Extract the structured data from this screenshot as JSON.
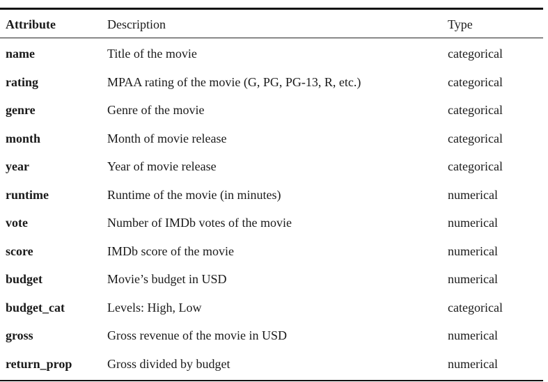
{
  "table": {
    "headers": {
      "attribute": "Attribute",
      "description": "Description",
      "type": "Type"
    },
    "rows": [
      {
        "attribute": "name",
        "description": "Title of the movie",
        "type": "categorical"
      },
      {
        "attribute": "rating",
        "description": "MPAA rating of the movie (G, PG, PG-13, R, etc.)",
        "type": "categorical"
      },
      {
        "attribute": "genre",
        "description": "Genre of the movie",
        "type": "categorical"
      },
      {
        "attribute": "month",
        "description": "Month of movie release",
        "type": "categorical"
      },
      {
        "attribute": "year",
        "description": "Year of movie release",
        "type": "categorical"
      },
      {
        "attribute": "runtime",
        "description": "Runtime of the movie (in minutes)",
        "type": "numerical"
      },
      {
        "attribute": "vote",
        "description": "Number of IMDb votes of the movie",
        "type": "numerical"
      },
      {
        "attribute": "score",
        "description": "IMDb score of the movie",
        "type": "numerical"
      },
      {
        "attribute": "budget",
        "description": "Movie’s budget in USD",
        "type": "numerical"
      },
      {
        "attribute": "budget_cat",
        "description": "Levels: High, Low",
        "type": "categorical"
      },
      {
        "attribute": "gross",
        "description": "Gross revenue of the movie in USD",
        "type": "numerical"
      },
      {
        "attribute": "return_prop",
        "description": "Gross divided by budget",
        "type": "numerical"
      }
    ]
  }
}
